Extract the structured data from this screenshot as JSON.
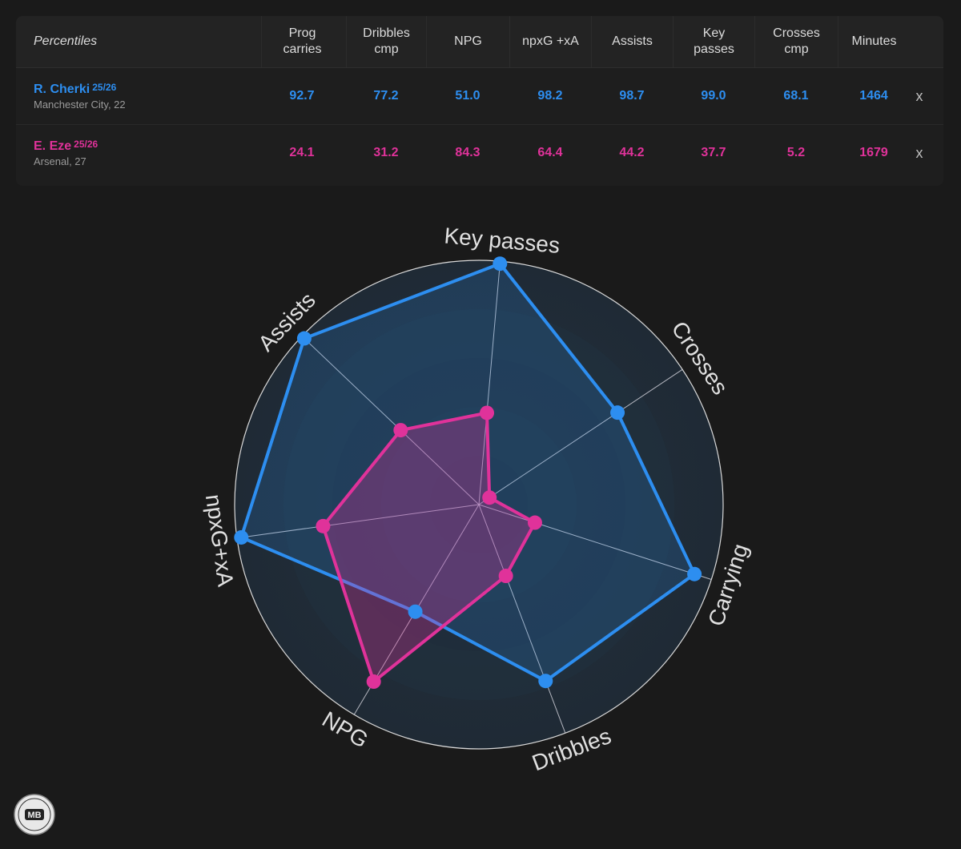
{
  "table": {
    "corner_label": "Percentiles",
    "columns": [
      "Prog\ncarries",
      "Dribbles\ncmp",
      "NPG",
      "npxG +xA",
      "Assists",
      "Key\npasses",
      "Crosses\ncmp",
      "Minutes"
    ],
    "players": [
      {
        "name": "R. Cherki",
        "season": "25/26",
        "club_age": "Manchester City, 22",
        "color": "#2d8ef0",
        "values": [
          "92.7",
          "77.2",
          "51.0",
          "98.2",
          "98.7",
          "99.0",
          "68.1",
          "1464"
        ],
        "remove_label": "x"
      },
      {
        "name": "E. Eze",
        "season": "25/26",
        "club_age": "Arsenal, 27",
        "color": "#e0329a",
        "values": [
          "24.1",
          "31.2",
          "84.3",
          "64.4",
          "44.2",
          "37.7",
          "5.2",
          "1679"
        ],
        "remove_label": "x"
      }
    ]
  },
  "chart_data": {
    "type": "radar",
    "axes": [
      "Key passes",
      "Crosses",
      "Carrying",
      "Dribbles",
      "NPG",
      "npxG+xA",
      "Assists"
    ],
    "range": [
      0,
      100
    ],
    "series": [
      {
        "name": "R. Cherki",
        "color": "#2d8ef0",
        "values": [
          99.0,
          68.1,
          92.7,
          77.2,
          51.0,
          98.2,
          98.7
        ]
      },
      {
        "name": "E. Eze",
        "color": "#e0329a",
        "values": [
          37.7,
          5.2,
          24.1,
          31.2,
          84.3,
          64.4,
          44.2
        ]
      }
    ]
  },
  "logo": {
    "text": "MB"
  }
}
